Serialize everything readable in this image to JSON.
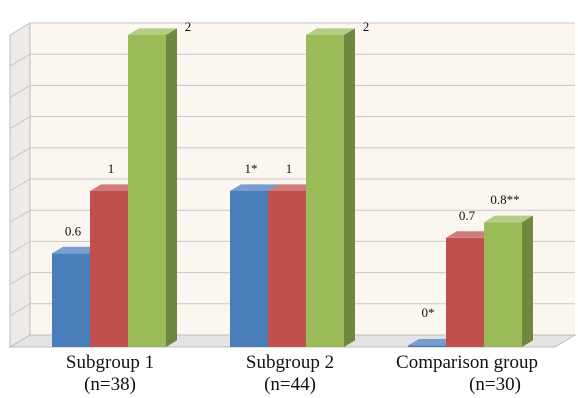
{
  "chart_data": {
    "type": "bar",
    "categories": [
      {
        "name": "Subgroup 1",
        "n": "(n=38)"
      },
      {
        "name": "Subgroup 2",
        "n": "(n=44)"
      },
      {
        "name": "Comparison group",
        "n": "(n=30)"
      }
    ],
    "series": [
      {
        "color": "#4a7ebb",
        "values": [
          0.6,
          1.0,
          0.0
        ],
        "labels": [
          "0.6",
          "1*",
          "0*"
        ]
      },
      {
        "color": "#c0504d",
        "values": [
          1.0,
          1.0,
          0.7
        ],
        "labels": [
          "1",
          "1",
          "0.7"
        ]
      },
      {
        "color": "#9bbb59",
        "values": [
          2.0,
          2.0,
          0.8
        ],
        "labels": [
          "2",
          "2",
          "0.8**"
        ]
      }
    ],
    "ylim": [
      0,
      2
    ],
    "grid": true,
    "style": "3d"
  }
}
